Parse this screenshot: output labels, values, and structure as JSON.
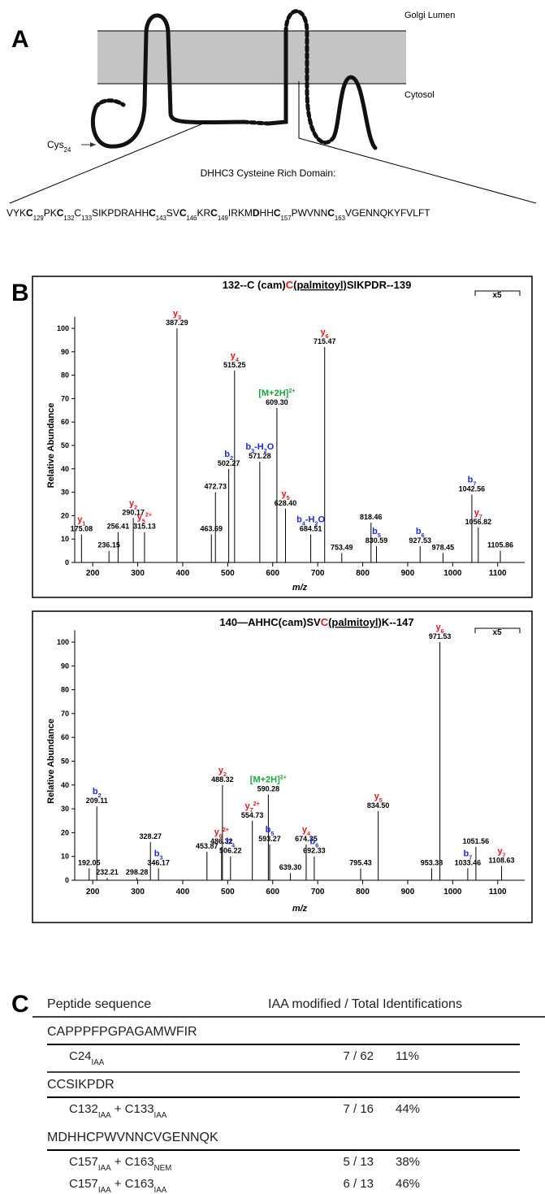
{
  "panel_a": {
    "label": "A",
    "lumen": "Golgi Lumen",
    "cytosol": "Cytosol",
    "cys": [
      {
        "t": "Cys",
        "sub": "24"
      }
    ],
    "domain_title": "DHHC3 Cysteine Rich Domain:",
    "sequence": [
      {
        "t": "VYK"
      },
      {
        "t": "C",
        "sub": "129",
        "bold": true
      },
      {
        "t": "PK"
      },
      {
        "t": "C",
        "sub": "132",
        "bold": true
      },
      {
        "t": "C",
        "sub": "133"
      },
      {
        "t": "SIKPDRAHH"
      },
      {
        "t": "C",
        "sub": "143",
        "bold": true
      },
      {
        "t": "SV"
      },
      {
        "t": "C",
        "sub": "146",
        "bold": true
      },
      {
        "t": "KR"
      },
      {
        "t": "C",
        "sub": "149",
        "bold": true
      },
      {
        "t": "IRKM"
      },
      {
        "t": "D",
        "bold": true
      },
      {
        "t": "HH"
      },
      {
        "t": "C",
        "sub": "157",
        "bold": true
      },
      {
        "t": "PWVNN"
      },
      {
        "t": "C",
        "sub": "163",
        "bold": true
      },
      {
        "t": "VGENNQKYFVLFT"
      }
    ]
  },
  "panel_b_label": "B",
  "chart_data": [
    {
      "type": "stick",
      "title_parts": [
        {
          "t": "132--C (cam)"
        },
        {
          "t": "C",
          "color": "#e8141b"
        },
        {
          "t": "(palmitoyl)",
          "underline": true
        },
        {
          "t": "SIKPDR--139"
        }
      ],
      "zoom_label": "x5",
      "xlabel": "m/z",
      "ylabel": "Relative Abundance",
      "xlim": [
        160,
        1160
      ],
      "ylim": [
        0,
        105
      ],
      "xticks": [
        200,
        300,
        400,
        500,
        600,
        700,
        800,
        900,
        1000,
        1100
      ],
      "yticks": [
        0,
        10,
        20,
        30,
        40,
        50,
        60,
        70,
        80,
        90,
        100
      ],
      "x": [
        175.08,
        236.15,
        256.41,
        290.17,
        315.13,
        387.29,
        463.69,
        472.73,
        502.27,
        515.25,
        571.28,
        609.3,
        628.4,
        684.51,
        715.47,
        753.49,
        818.46,
        830.59,
        927.53,
        978.45,
        1042.56,
        1056.82,
        1105.86
      ],
      "x_labels": [
        "175.08",
        "236.15",
        "256.41",
        "290.17",
        "315.13",
        "387.29",
        "463.69",
        "472.73",
        "502.27",
        "515.25",
        "571.28",
        "609.30",
        "628.40",
        "684.51",
        "715.47",
        "753.49",
        "818.46",
        "830.59",
        "927.53",
        "978.45",
        "1042.56",
        "1056.82",
        "1105.86"
      ],
      "values": [
        12,
        5,
        13,
        19,
        13,
        100,
        12,
        30,
        40,
        82,
        43,
        66,
        23,
        12,
        92,
        4,
        17,
        7,
        7,
        4,
        29,
        15,
        5
      ],
      "ions": [
        [
          {
            "t": "y",
            "sub": "1"
          }
        ],
        null,
        null,
        [
          {
            "t": "y",
            "sub": "2"
          }
        ],
        [
          {
            "t": "y",
            "sub": "5",
            "sup": "2+"
          }
        ],
        [
          {
            "t": "y",
            "sub": "3"
          }
        ],
        null,
        null,
        [
          {
            "t": "b",
            "sub": "2"
          }
        ],
        [
          {
            "t": "y",
            "sub": "4"
          }
        ],
        [
          {
            "t": "b",
            "sub": "3"
          },
          {
            "t": "-H",
            "sub": "2"
          },
          {
            "t": "O"
          }
        ],
        [
          {
            "t": "[M+2H]",
            "sup": "2+"
          }
        ],
        [
          {
            "t": "y",
            "sub": "5"
          }
        ],
        [
          {
            "t": "b",
            "sub": "4"
          },
          {
            "t": "-H",
            "sub": "2"
          },
          {
            "t": "O"
          }
        ],
        [
          {
            "t": "y",
            "sub": "6"
          }
        ],
        null,
        null,
        [
          {
            "t": "b",
            "sub": "5"
          }
        ],
        [
          {
            "t": "b",
            "sub": "6"
          }
        ],
        null,
        [
          {
            "t": "b",
            "sub": "7"
          }
        ],
        [
          {
            "t": "y",
            "sub": "7"
          }
        ],
        null
      ],
      "ion_colors": [
        "#e8141b",
        null,
        null,
        "#e8141b",
        "#e8141b",
        "#e8141b",
        null,
        null,
        "#1f2bd6",
        "#e8141b",
        "#1f2bd6",
        "#17a83a",
        "#e8141b",
        "#1f2bd6",
        "#e8141b",
        null,
        null,
        "#1f2bd6",
        "#1f2bd6",
        null,
        "#1f2bd6",
        "#e8141b",
        null
      ]
    },
    {
      "type": "stick",
      "title_parts": [
        {
          "t": "140—AHHC(cam)SV"
        },
        {
          "t": "C",
          "color": "#e8141b"
        },
        {
          "t": "(palmitoyl)",
          "underline": true
        },
        {
          "t": "K--147"
        }
      ],
      "zoom_label": "x5",
      "xlabel": "m/z",
      "ylabel": "Relative Abundance",
      "xlim": [
        160,
        1160
      ],
      "ylim": [
        0,
        105
      ],
      "xticks": [
        200,
        300,
        400,
        500,
        600,
        700,
        800,
        900,
        1000,
        1100
      ],
      "yticks": [
        0,
        10,
        20,
        30,
        40,
        50,
        60,
        70,
        80,
        90,
        100
      ],
      "x": [
        192.05,
        209.11,
        232.21,
        298.28,
        328.27,
        346.17,
        453.87,
        486.32,
        488.32,
        506.22,
        554.73,
        590.28,
        593.27,
        639.3,
        674.35,
        692.33,
        795.43,
        834.5,
        953.38,
        971.53,
        1033.46,
        1051.56,
        1108.63
      ],
      "x_labels": [
        "192.05",
        "209.11",
        "232.21",
        "298.28",
        "328.27",
        "346.17",
        "453.87",
        "486.32",
        "488.32",
        "506.22",
        "554.73",
        "590.28",
        "593.27",
        "639.30",
        "674.35",
        "692.33",
        "795.43",
        "834.50",
        "953.38",
        "971.53",
        "1033.46",
        "1051.56",
        "1108.63"
      ],
      "values": [
        5,
        31,
        1,
        1,
        16,
        5,
        12,
        14,
        40,
        10,
        25,
        36,
        15,
        3,
        15,
        10,
        5,
        29,
        5,
        100,
        5,
        14,
        6
      ],
      "ions": [
        null,
        [
          {
            "t": "b",
            "sub": "2"
          }
        ],
        null,
        null,
        null,
        [
          {
            "t": "b",
            "sub": "3"
          }
        ],
        null,
        [
          {
            "t": "y",
            "sub": "6",
            "sup": "2+"
          }
        ],
        [
          {
            "t": "y",
            "sub": "2"
          }
        ],
        [
          {
            "t": "b",
            "sub": "4"
          }
        ],
        [
          {
            "t": "y",
            "sub": "7",
            "sup": "2+"
          }
        ],
        [
          {
            "t": "[M+2H]",
            "sup": "2+"
          }
        ],
        [
          {
            "t": "b",
            "sub": "5"
          }
        ],
        null,
        [
          {
            "t": "y",
            "sub": "4"
          }
        ],
        [
          {
            "t": "b",
            "sub": "6"
          }
        ],
        null,
        [
          {
            "t": "y",
            "sub": "5"
          }
        ],
        null,
        [
          {
            "t": "y",
            "sub": "6"
          }
        ],
        [
          {
            "t": "b",
            "sub": "7"
          }
        ],
        null,
        [
          {
            "t": "y",
            "sub": "7"
          }
        ]
      ],
      "ion_colors": [
        null,
        "#1f2bd6",
        null,
        null,
        null,
        "#1f2bd6",
        null,
        "#e8141b",
        "#e8141b",
        "#1f2bd6",
        "#e8141b",
        "#17a83a",
        "#1f2bd6",
        null,
        "#e8141b",
        "#1f2bd6",
        null,
        "#e8141b",
        null,
        "#e8141b",
        "#1f2bd6",
        null,
        "#e8141b"
      ]
    }
  ],
  "panel_c": {
    "label": "C",
    "header": [
      "Peptide sequence",
      "IAA modified / Total Identifications"
    ],
    "groups": [
      {
        "peptide": "CAPPPFPGPAGAMWFIR",
        "rows": [
          {
            "site": [
              {
                "t": "C24",
                "sub": "IAA"
              }
            ],
            "ratio": "7 / 62",
            "percent": "11%"
          }
        ]
      },
      {
        "peptide": "CCSIKPDR",
        "rows": [
          {
            "site": [
              {
                "t": "C132",
                "sub": "IAA"
              },
              {
                "t": " + C133",
                "sub": "IAA"
              }
            ],
            "ratio": "7 / 16",
            "percent": "44%"
          }
        ]
      },
      {
        "peptide": "MDHHCPWVNNCVGENNQK",
        "rows": [
          {
            "site": [
              {
                "t": "C157",
                "sub": "IAA"
              },
              {
                "t": " + C163",
                "sub": "NEM"
              }
            ],
            "ratio": "5 / 13",
            "percent": "38%"
          },
          {
            "site": [
              {
                "t": "C157",
                "sub": "IAA"
              },
              {
                "t": " + C163",
                "sub": "IAA"
              }
            ],
            "ratio": "6 / 13",
            "percent": "46%"
          }
        ]
      }
    ]
  }
}
